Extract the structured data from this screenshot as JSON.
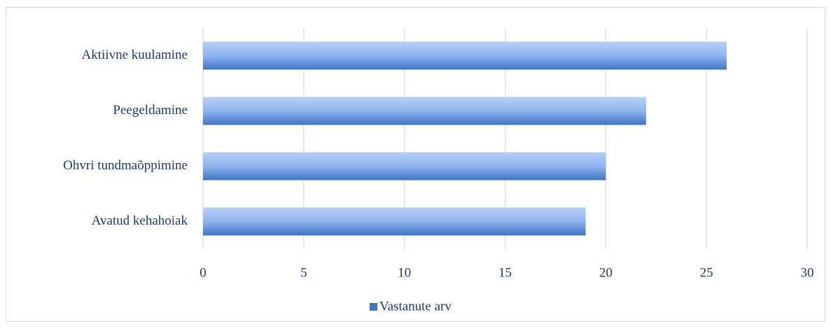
{
  "chart_data": {
    "type": "barh",
    "categories": [
      "Aktiivne kuulamine",
      "Peegeldamine",
      "Ohvri tundmaõppimine",
      "Avatud kehahoiak"
    ],
    "series": [
      {
        "name": "Vastanute arv",
        "color": "#3f74c6",
        "values": [
          26,
          22,
          20,
          19
        ]
      }
    ],
    "xlim": [
      0,
      30
    ],
    "xticks": [
      0,
      5,
      10,
      15,
      20,
      25,
      30
    ],
    "grid": true,
    "legend": "bottom"
  }
}
